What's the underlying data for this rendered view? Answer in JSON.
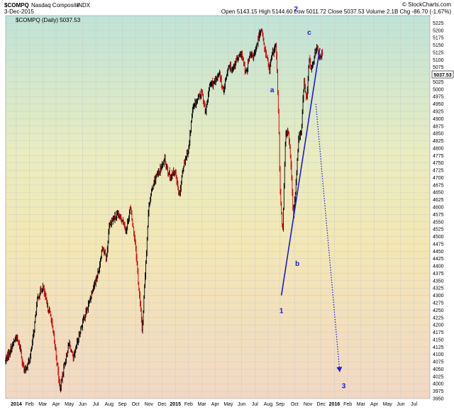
{
  "header": {
    "symbol": "$COMPQ",
    "name": "Nasdaq Composite",
    "exchange": "INDX",
    "date": "3-Dec-2015",
    "quote": "Open 5143.15  High 5144.60  Low 5011.72  Close 5037.53  Volume 2.1B  Chg -86.70 (-1.67%)",
    "legend": "$COMPQ (Daily) 5037.53",
    "brand": "© StockCharts.com",
    "last_price": "5037.53"
  },
  "chart_data": {
    "type": "ohlc",
    "title": "$COMPQ Nasdaq Composite INDX",
    "ylim": [
      3950,
      5250
    ],
    "y_ticks": [
      3950,
      3975,
      4000,
      4025,
      4050,
      4075,
      4100,
      4125,
      4150,
      4175,
      4200,
      4225,
      4250,
      4275,
      4300,
      4325,
      4350,
      4375,
      4400,
      4425,
      4450,
      4475,
      4500,
      4525,
      4550,
      4575,
      4600,
      4625,
      4650,
      4675,
      4700,
      4725,
      4750,
      4775,
      4800,
      4825,
      4850,
      4875,
      4900,
      4925,
      4950,
      4975,
      5000,
      5025,
      5050,
      5075,
      5100,
      5125,
      5150,
      5175,
      5200,
      5225
    ],
    "x_labels": [
      "2014",
      "Feb",
      "Mar",
      "Apr",
      "May",
      "Jun",
      "Jul",
      "Aug",
      "Sep",
      "Oct",
      "Nov",
      "Dec",
      "2015",
      "Feb",
      "Mar",
      "Apr",
      "May",
      "Jun",
      "Jul",
      "Aug",
      "Sep",
      "Oct",
      "Nov",
      "Dec",
      "2016",
      "Feb",
      "Mar",
      "Apr",
      "May",
      "Jun",
      "Jul"
    ],
    "x_label_months": [
      0,
      1,
      2,
      3,
      4,
      5,
      6,
      7,
      8,
      9,
      10,
      11,
      12,
      13,
      14,
      15,
      16,
      17,
      18,
      19,
      19.9,
      21,
      22,
      23,
      24,
      25,
      26,
      27,
      28,
      29,
      30
    ],
    "x_range_months": [
      -0.8,
      31.2
    ],
    "path_months": [
      -0.8,
      0,
      0.3,
      0.6,
      1,
      1.3,
      1.6,
      2,
      2.3,
      2.6,
      3,
      3.3,
      3.6,
      4,
      4.3,
      4.6,
      5,
      5.4,
      5.8,
      6.2,
      6.5,
      6.8,
      7,
      7.3,
      7.6,
      8,
      8.3,
      8.6,
      9,
      9.2,
      9.5,
      9.8,
      10,
      10.4,
      10.8,
      11.2,
      11.6,
      12,
      12.3,
      12.6,
      13,
      13.3,
      13.6,
      14,
      14.3,
      14.6,
      15,
      15.3,
      15.6,
      16,
      16.3,
      16.6,
      17,
      17.3,
      17.6,
      18,
      18.3,
      18.5,
      18.7,
      18.9,
      19.1,
      19.3,
      19.6,
      19.8,
      19.9,
      20.1,
      20.3,
      20.5,
      20.7,
      20.9,
      21.1,
      21.3,
      21.5,
      21.7,
      21.9,
      22.1,
      22.3,
      22.5,
      22.7,
      22.9,
      23.1
    ],
    "path_values": [
      4080,
      4160,
      4120,
      4040,
      4080,
      4170,
      4290,
      4330,
      4270,
      4230,
      4100,
      3980,
      4060,
      4140,
      4080,
      4140,
      4210,
      4260,
      4330,
      4380,
      4470,
      4420,
      4540,
      4560,
      4570,
      4560,
      4520,
      4600,
      4470,
      4350,
      4180,
      4440,
      4610,
      4690,
      4720,
      4760,
      4700,
      4720,
      4640,
      4740,
      4800,
      4930,
      4960,
      4990,
      4920,
      5020,
      5020,
      5060,
      4990,
      5080,
      5070,
      5100,
      5120,
      5050,
      5110,
      5120,
      5180,
      5210,
      5140,
      5110,
      5060,
      5120,
      5150,
      4880,
      4650,
      4520,
      4840,
      4860,
      4760,
      4560,
      4680,
      4840,
      4850,
      5030,
      4960,
      5100,
      5070,
      5120,
      5140,
      5100,
      5130
    ],
    "annotations": {
      "waves": [
        {
          "label": "1",
          "month": 20,
          "value": 4240
        },
        {
          "label": "2",
          "month": 21.1,
          "value": 5265
        },
        {
          "label": "3",
          "month": 24.7,
          "value": 3985
        },
        {
          "label": "a",
          "month": 19.3,
          "value": 4990
        },
        {
          "label": "b",
          "month": 21.2,
          "value": 4400
        },
        {
          "label": "c",
          "month": 22.1,
          "value": 5185
        }
      ],
      "trendline": {
        "from": {
          "month": 20,
          "value": 4300
        },
        "to": {
          "month": 22.9,
          "value": 5140
        }
      },
      "projection": {
        "from": {
          "month": 22.6,
          "value": 4950
        },
        "to": {
          "month": 24.4,
          "value": 4040
        }
      }
    }
  }
}
